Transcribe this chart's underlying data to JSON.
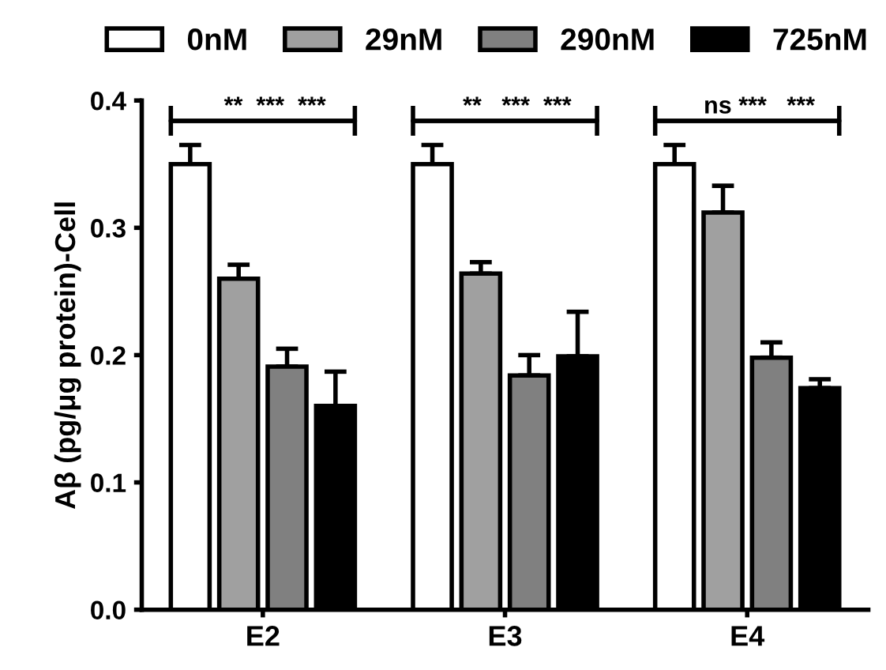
{
  "chart_data": {
    "type": "bar",
    "ylabel": "Aβ (pg/μg protein)-Cell",
    "categories": [
      "E2",
      "E3",
      "E4"
    ],
    "series": [
      {
        "name": "0nM",
        "color": "#ffffff",
        "values": [
          0.35,
          0.35,
          0.35
        ],
        "errors": [
          0.015,
          0.015,
          0.015
        ]
      },
      {
        "name": "29nM",
        "color": "#a0a0a0",
        "values": [
          0.26,
          0.264,
          0.312
        ],
        "errors": [
          0.011,
          0.009,
          0.021
        ]
      },
      {
        "name": "290nM",
        "color": "#808080",
        "values": [
          0.191,
          0.184,
          0.198
        ],
        "errors": [
          0.014,
          0.016,
          0.012
        ]
      },
      {
        "name": "725nM",
        "color": "#000000",
        "values": [
          0.16,
          0.199,
          0.174
        ],
        "errors": [
          0.027,
          0.035,
          0.007
        ]
      }
    ],
    "annotations": [
      "**  ***  ***",
      "**   ***  ***",
      "ns ***   ***"
    ],
    "ylim": [
      0,
      0.4
    ],
    "yticks": [
      {
        "value": 0,
        "label": "0.0"
      },
      0.1,
      0.2,
      0.3,
      0.4
    ],
    "legend": "top",
    "grid": false
  }
}
